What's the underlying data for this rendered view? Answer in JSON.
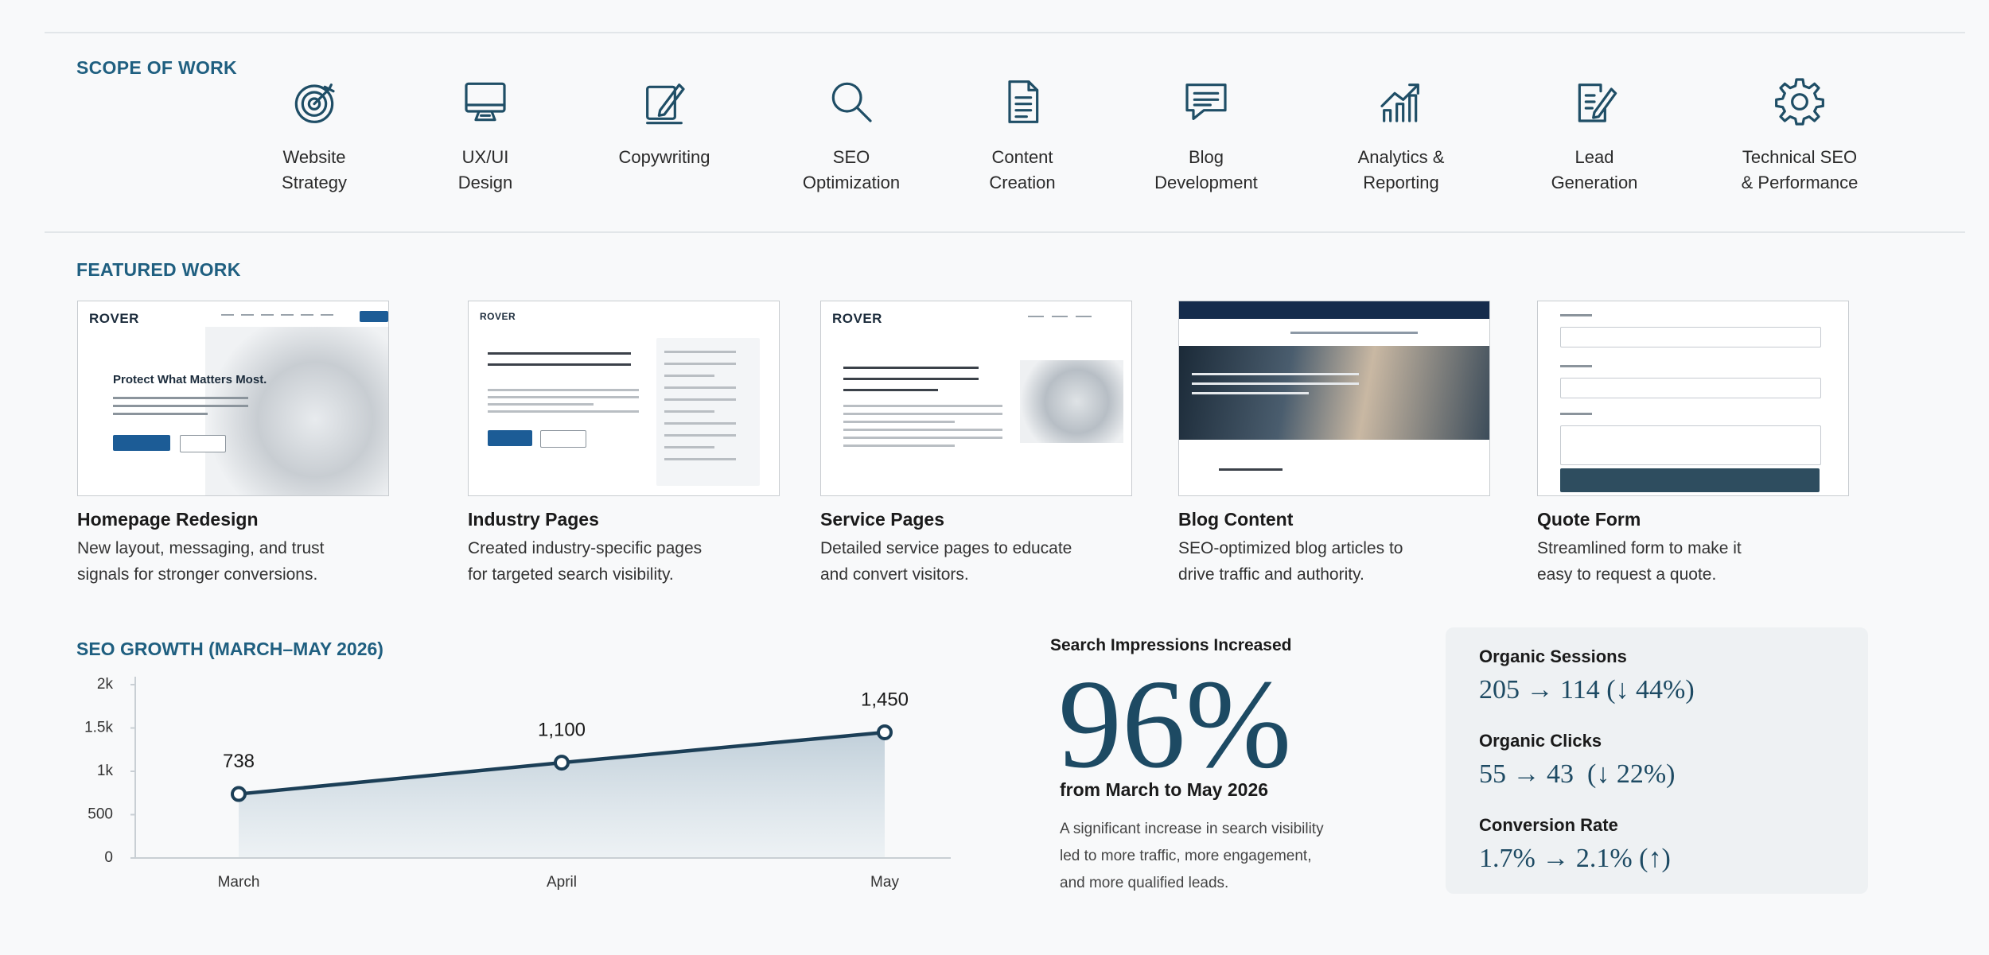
{
  "scope": {
    "title": "SCOPE OF WORK",
    "items": [
      [
        "Website",
        "Strategy"
      ],
      [
        "UX/UI",
        "Design"
      ],
      [
        "Copywriting"
      ],
      [
        "SEO",
        "Optimization"
      ],
      [
        "Content",
        "Creation"
      ],
      [
        "Blog",
        "Development"
      ],
      [
        "Analytics &",
        "Reporting"
      ],
      [
        "Lead",
        "Generation"
      ],
      [
        "Technical SEO",
        "& Performance"
      ]
    ]
  },
  "featured": {
    "title": "FEATURED WORK",
    "items": [
      {
        "logo": "ROVER",
        "heading": "Protect What Matters Most.",
        "title": "Homepage Redesign",
        "desc": [
          "New layout, messaging, and trust",
          "signals for stronger conversions."
        ]
      },
      {
        "logo": "ROVER",
        "title": "Industry Pages",
        "desc": [
          "Created industry-specific pages",
          "for targeted search visibility."
        ]
      },
      {
        "logo": "ROVER",
        "title": "Service Pages",
        "desc": [
          "Detailed service pages to educate",
          "and convert visitors."
        ]
      },
      {
        "title": "Blog Content",
        "desc": [
          "SEO-optimized blog articles to",
          "drive traffic and authority."
        ]
      },
      {
        "title": "Quote Form",
        "desc": [
          "Streamlined form to make it",
          "easy to request a quote."
        ]
      }
    ]
  },
  "chart_data": {
    "type": "line",
    "title": "SEO GROWTH (MARCH–MAY 2026)",
    "categories": [
      "March",
      "April",
      "May"
    ],
    "values": [
      738,
      1100,
      1450
    ],
    "value_labels": [
      "738",
      "1,100",
      "1,450"
    ],
    "color": "#1c3f57",
    "ylim": [
      0,
      2000
    ],
    "yticks": [
      0,
      500,
      {
        "value": 1000,
        "label": "1k"
      },
      {
        "value": 1500,
        "label": "1.5k"
      },
      {
        "value": 2000,
        "label": "2k"
      }
    ],
    "grid": false
  },
  "impressions": {
    "title": "Search Impressions Increased",
    "value": "96%",
    "period": "from March to May 2026",
    "desc": [
      "A significant increase in search visibility",
      "led to more traffic, more engagement,",
      "and more qualified leads."
    ]
  },
  "stats": [
    {
      "label": "Organic Sessions",
      "value": "205 → 114 (↓ 44%)"
    },
    {
      "label": "Organic Clicks",
      "value": "55 → 43  (↓ 22%)"
    },
    {
      "label": "Conversion Rate",
      "value": "1.7% → 2.1% (↑)"
    }
  ]
}
